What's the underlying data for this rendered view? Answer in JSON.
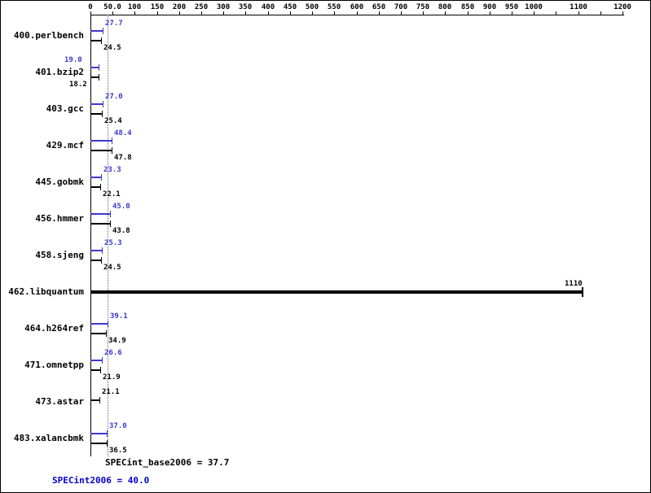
{
  "chart_data": {
    "type": "bar",
    "orientation": "horizontal",
    "title": "",
    "xlabel": "",
    "ylabel": "",
    "xlim": [
      0,
      1200
    ],
    "grid": false,
    "legend": null,
    "x_axis": {
      "position": "top",
      "ticks": [
        {
          "value": 0,
          "label": "0"
        },
        {
          "value": 50,
          "label": "50.0"
        },
        {
          "value": 100,
          "label": "100"
        },
        {
          "value": 150,
          "label": "150"
        },
        {
          "value": 200,
          "label": "200"
        },
        {
          "value": 250,
          "label": "250"
        },
        {
          "value": 300,
          "label": "300"
        },
        {
          "value": 350,
          "label": "350"
        },
        {
          "value": 400,
          "label": "400"
        },
        {
          "value": 450,
          "label": "450"
        },
        {
          "value": 500,
          "label": "500"
        },
        {
          "value": 550,
          "label": "550"
        },
        {
          "value": 600,
          "label": "600"
        },
        {
          "value": 650,
          "label": "650"
        },
        {
          "value": 700,
          "label": "700"
        },
        {
          "value": 750,
          "label": "750"
        },
        {
          "value": 800,
          "label": "800"
        },
        {
          "value": 850,
          "label": "850"
        },
        {
          "value": 900,
          "label": "900"
        },
        {
          "value": 950,
          "label": "950"
        },
        {
          "value": 1000,
          "label": "1000"
        },
        {
          "value": 1050,
          "label": ""
        },
        {
          "value": 1100,
          "label": "1100"
        },
        {
          "value": 1150,
          "label": ""
        },
        {
          "value": 1200,
          "label": "1200"
        }
      ]
    },
    "reference_line": {
      "value": 37.7,
      "style": "dotted"
    },
    "colors": {
      "peak_blue": "#3a3acc",
      "base_black": "#000000",
      "footer_blue": "#0000cc",
      "reference_gray": "#666666"
    },
    "benchmarks": [
      {
        "name": "400.perlbench",
        "peak": {
          "value": 27.7,
          "label": "27.7"
        },
        "base": {
          "value": 24.5,
          "label": "24.5"
        }
      },
      {
        "name": "401.bzip2",
        "peak": {
          "value": 19.0,
          "label": "19.0",
          "label_x": 78
        },
        "base": {
          "value": 18.2,
          "label": "18.2",
          "label_x": 84
        }
      },
      {
        "name": "403.gcc",
        "peak": {
          "value": 27.0,
          "label": "27.0"
        },
        "base": {
          "value": 25.4,
          "label": "25.4"
        }
      },
      {
        "name": "429.mcf",
        "peak": {
          "value": 48.4,
          "label": "48.4"
        },
        "base": {
          "value": 47.8,
          "label": "47.8"
        }
      },
      {
        "name": "445.gobmk",
        "peak": {
          "value": 23.3,
          "label": "23.3"
        },
        "base": {
          "value": 22.1,
          "label": "22.1"
        }
      },
      {
        "name": "456.hmmer",
        "peak": {
          "value": 45.0,
          "label": "45.0"
        },
        "base": {
          "value": 43.8,
          "label": "43.8"
        }
      },
      {
        "name": "458.sjeng",
        "peak": {
          "value": 25.3,
          "label": "25.3"
        },
        "base": {
          "value": 24.5,
          "label": "24.5"
        }
      },
      {
        "name": "462.libquantum",
        "single": {
          "value": 1110,
          "label": "1110"
        }
      },
      {
        "name": "464.h264ref",
        "peak": {
          "value": 39.1,
          "label": "39.1"
        },
        "base": {
          "value": 34.9,
          "label": "34.9"
        }
      },
      {
        "name": "471.omnetpp",
        "peak": {
          "value": 26.6,
          "label": "26.6"
        },
        "base": {
          "value": 21.9,
          "label": "21.9"
        }
      },
      {
        "name": "473.astar",
        "base": {
          "value": 21.1,
          "label": "21.1"
        },
        "base_above": true
      },
      {
        "name": "483.xalancbmk",
        "peak": {
          "value": 37.0,
          "label": "37.0"
        },
        "base": {
          "value": 36.5,
          "label": "36.5"
        }
      }
    ],
    "footer": {
      "base_label": "SPECint_base2006 = 37.7",
      "peak_label": "SPECint2006 = 40.0"
    }
  }
}
